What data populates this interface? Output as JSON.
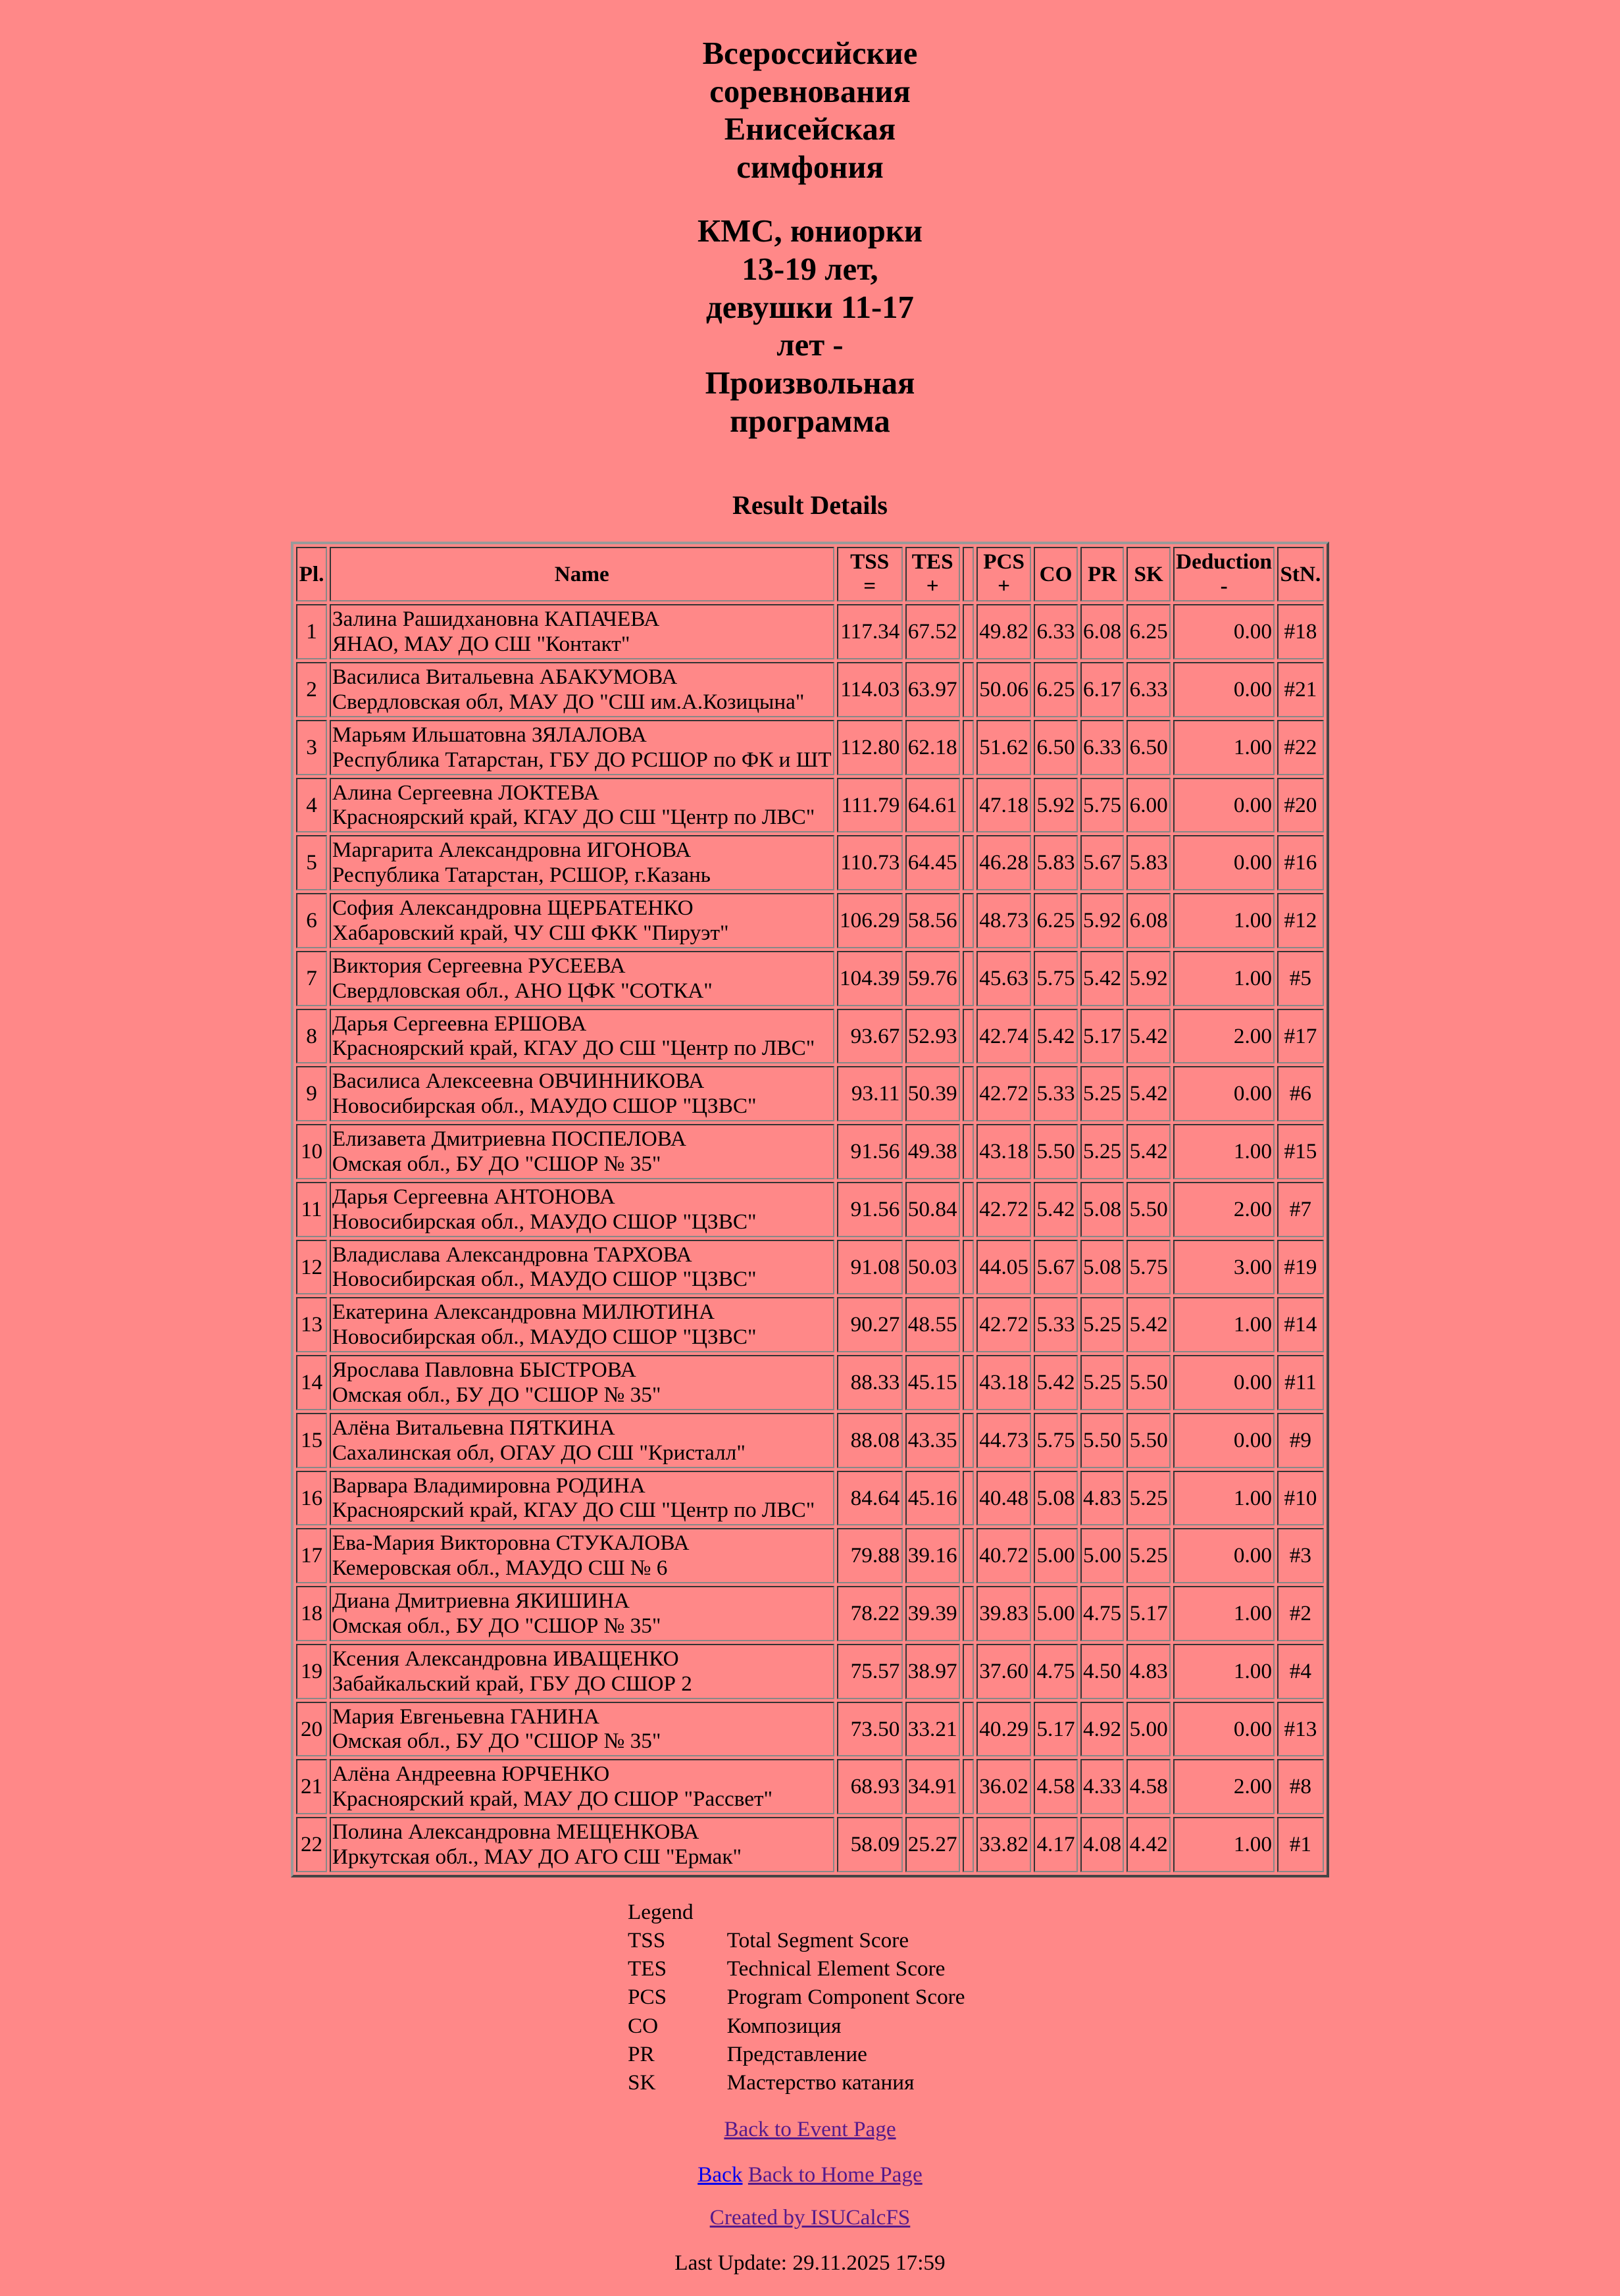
{
  "title": {
    "event": "Всероссийские соревнования Енисейская симфония",
    "category": "КМС, юниорки 13-19 лет, девушки 11-17 лет - Произвольная программа"
  },
  "section_title": "Result Details",
  "table": {
    "headers": {
      "pl": "Pl.",
      "name": "Name",
      "tss": "TSS",
      "tss_op": "=",
      "tes": "TES",
      "tes_op": "+",
      "pcs": "PCS",
      "pcs_op": "+",
      "co": "CO",
      "pr": "PR",
      "sk": "SK",
      "ded": "Deduction",
      "ded_op": "-",
      "stn": "StN."
    },
    "rows": [
      {
        "pl": "1",
        "name": "Залина Рашидхановна КАПАЧЕВА",
        "club": "ЯНАО, МАУ ДО СШ \"Контакт\"",
        "tss": "117.34",
        "tes": "67.52",
        "pcs": "49.82",
        "co": "6.33",
        "pr": "6.08",
        "sk": "6.25",
        "ded": "0.00",
        "stn": "#18"
      },
      {
        "pl": "2",
        "name": "Василиса Витальевна АБАКУМОВА",
        "club": "Свердловская обл, МАУ ДО \"СШ им.А.Козицына\"",
        "tss": "114.03",
        "tes": "63.97",
        "pcs": "50.06",
        "co": "6.25",
        "pr": "6.17",
        "sk": "6.33",
        "ded": "0.00",
        "stn": "#21"
      },
      {
        "pl": "3",
        "name": "Марьям Ильшатовна ЗЯЛАЛОВА",
        "club": "Республика Татарстан, ГБУ ДО РСШОР по ФК и ШТ",
        "tss": "112.80",
        "tes": "62.18",
        "pcs": "51.62",
        "co": "6.50",
        "pr": "6.33",
        "sk": "6.50",
        "ded": "1.00",
        "stn": "#22"
      },
      {
        "pl": "4",
        "name": "Алина Сергеевна ЛОКТЕВА",
        "club": "Красноярский край, КГАУ ДО СШ \"Центр по ЛВС\"",
        "tss": "111.79",
        "tes": "64.61",
        "pcs": "47.18",
        "co": "5.92",
        "pr": "5.75",
        "sk": "6.00",
        "ded": "0.00",
        "stn": "#20"
      },
      {
        "pl": "5",
        "name": "Маргарита Александровна ИГОНОВА",
        "club": "Республика Татарстан, РСШОР, г.Казань",
        "tss": "110.73",
        "tes": "64.45",
        "pcs": "46.28",
        "co": "5.83",
        "pr": "5.67",
        "sk": "5.83",
        "ded": "0.00",
        "stn": "#16"
      },
      {
        "pl": "6",
        "name": "София Александровна ЩЕРБАТЕНКО",
        "club": "Хабаровский край, ЧУ СШ ФКК \"Пируэт\"",
        "tss": "106.29",
        "tes": "58.56",
        "pcs": "48.73",
        "co": "6.25",
        "pr": "5.92",
        "sk": "6.08",
        "ded": "1.00",
        "stn": "#12"
      },
      {
        "pl": "7",
        "name": "Виктория Сергеевна РУСЕЕВА",
        "club": "Свердловская обл., АНО ЦФК \"СОТКА\"",
        "tss": "104.39",
        "tes": "59.76",
        "pcs": "45.63",
        "co": "5.75",
        "pr": "5.42",
        "sk": "5.92",
        "ded": "1.00",
        "stn": "#5"
      },
      {
        "pl": "8",
        "name": "Дарья Сергеевна ЕРШОВА",
        "club": "Красноярский край, КГАУ ДО СШ \"Центр по ЛВС\"",
        "tss": "93.67",
        "tes": "52.93",
        "pcs": "42.74",
        "co": "5.42",
        "pr": "5.17",
        "sk": "5.42",
        "ded": "2.00",
        "stn": "#17"
      },
      {
        "pl": "9",
        "name": "Василиса Алексеевна ОВЧИННИКОВА",
        "club": "Новосибирская обл., МАУДО СШОР \"ЦЗВС\"",
        "tss": "93.11",
        "tes": "50.39",
        "pcs": "42.72",
        "co": "5.33",
        "pr": "5.25",
        "sk": "5.42",
        "ded": "0.00",
        "stn": "#6"
      },
      {
        "pl": "10",
        "name": "Елизавета Дмитриевна ПОСПЕЛОВА",
        "club": "Омская обл., БУ ДО \"СШОР № 35\"",
        "tss": "91.56",
        "tes": "49.38",
        "pcs": "43.18",
        "co": "5.50",
        "pr": "5.25",
        "sk": "5.42",
        "ded": "1.00",
        "stn": "#15"
      },
      {
        "pl": "11",
        "name": "Дарья Сергеевна АНТОНОВА",
        "club": "Новосибирская обл., МАУДО СШОР \"ЦЗВС\"",
        "tss": "91.56",
        "tes": "50.84",
        "pcs": "42.72",
        "co": "5.42",
        "pr": "5.08",
        "sk": "5.50",
        "ded": "2.00",
        "stn": "#7"
      },
      {
        "pl": "12",
        "name": "Владислава Александровна ТАРХОВА",
        "club": "Новосибирская обл., МАУДО СШОР \"ЦЗВС\"",
        "tss": "91.08",
        "tes": "50.03",
        "pcs": "44.05",
        "co": "5.67",
        "pr": "5.08",
        "sk": "5.75",
        "ded": "3.00",
        "stn": "#19"
      },
      {
        "pl": "13",
        "name": "Екатерина Александровна МИЛЮТИНА",
        "club": "Новосибирская обл., МАУДО СШОР \"ЦЗВС\"",
        "tss": "90.27",
        "tes": "48.55",
        "pcs": "42.72",
        "co": "5.33",
        "pr": "5.25",
        "sk": "5.42",
        "ded": "1.00",
        "stn": "#14"
      },
      {
        "pl": "14",
        "name": "Ярослава Павловна БЫСТРОВА",
        "club": "Омская обл., БУ ДО \"СШОР № 35\"",
        "tss": "88.33",
        "tes": "45.15",
        "pcs": "43.18",
        "co": "5.42",
        "pr": "5.25",
        "sk": "5.50",
        "ded": "0.00",
        "stn": "#11"
      },
      {
        "pl": "15",
        "name": "Алёна Витальевна ПЯТКИНА",
        "club": "Сахалинская обл, ОГАУ ДО СШ \"Кристалл\"",
        "tss": "88.08",
        "tes": "43.35",
        "pcs": "44.73",
        "co": "5.75",
        "pr": "5.50",
        "sk": "5.50",
        "ded": "0.00",
        "stn": "#9"
      },
      {
        "pl": "16",
        "name": "Варвара Владимировна РОДИНА",
        "club": "Красноярский край, КГАУ ДО СШ \"Центр по ЛВС\"",
        "tss": "84.64",
        "tes": "45.16",
        "pcs": "40.48",
        "co": "5.08",
        "pr": "4.83",
        "sk": "5.25",
        "ded": "1.00",
        "stn": "#10"
      },
      {
        "pl": "17",
        "name": "Ева-Мария Викторовна СТУКАЛОВА",
        "club": "Кемеровская обл., МАУДО СШ № 6",
        "tss": "79.88",
        "tes": "39.16",
        "pcs": "40.72",
        "co": "5.00",
        "pr": "5.00",
        "sk": "5.25",
        "ded": "0.00",
        "stn": "#3"
      },
      {
        "pl": "18",
        "name": "Диана Дмитриевна ЯКИШИНА",
        "club": "Омская обл., БУ ДО \"СШОР № 35\"",
        "tss": "78.22",
        "tes": "39.39",
        "pcs": "39.83",
        "co": "5.00",
        "pr": "4.75",
        "sk": "5.17",
        "ded": "1.00",
        "stn": "#2"
      },
      {
        "pl": "19",
        "name": "Ксения Александровна ИВАЩЕНКО",
        "club": "Забайкальский край, ГБУ ДО СШОР 2",
        "tss": "75.57",
        "tes": "38.97",
        "pcs": "37.60",
        "co": "4.75",
        "pr": "4.50",
        "sk": "4.83",
        "ded": "1.00",
        "stn": "#4"
      },
      {
        "pl": "20",
        "name": "Мария Евгеньевна ГАНИНА",
        "club": "Омская обл., БУ ДО \"СШОР № 35\"",
        "tss": "73.50",
        "tes": "33.21",
        "pcs": "40.29",
        "co": "5.17",
        "pr": "4.92",
        "sk": "5.00",
        "ded": "0.00",
        "stn": "#13"
      },
      {
        "pl": "21",
        "name": "Алёна Андреевна ЮРЧЕНКО",
        "club": "Красноярский край, МАУ ДО СШОР \"Рассвет\"",
        "tss": "68.93",
        "tes": "34.91",
        "pcs": "36.02",
        "co": "4.58",
        "pr": "4.33",
        "sk": "4.58",
        "ded": "2.00",
        "stn": "#8"
      },
      {
        "pl": "22",
        "name": "Полина Александровна МЕЩЕНКОВА",
        "club": "Иркутская обл., МАУ ДО АГО СШ \"Ермак\"",
        "tss": "58.09",
        "tes": "25.27",
        "pcs": "33.82",
        "co": "4.17",
        "pr": "4.08",
        "sk": "4.42",
        "ded": "1.00",
        "stn": "#1"
      }
    ]
  },
  "legend": {
    "title": "Legend",
    "items": [
      {
        "abbr": "TSS",
        "text": "Total Segment Score"
      },
      {
        "abbr": "TES",
        "text": "Technical Element Score"
      },
      {
        "abbr": "PCS",
        "text": "Program Component Score"
      },
      {
        "abbr": "CO",
        "text": "Композиция"
      },
      {
        "abbr": "PR",
        "text": "Представление"
      },
      {
        "abbr": "SK",
        "text": "Мастерство катания"
      }
    ]
  },
  "links": {
    "event": "Back to Event Page",
    "back": "Back",
    "home": "Back to Home Page",
    "created": "Created by ISUCalcFS"
  },
  "last_update": "Last Update: 29.11.2025 17:59",
  "colors": {
    "background": "#FF8888",
    "link_visited": "#551A8B",
    "link": "#0000EE"
  }
}
